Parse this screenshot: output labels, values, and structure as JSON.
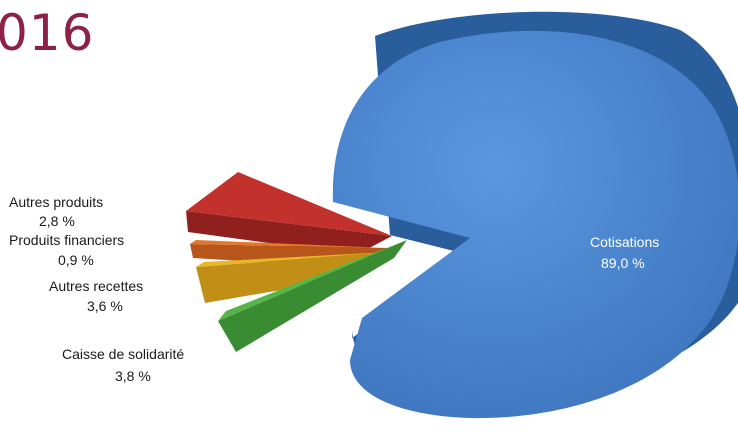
{
  "title": "016",
  "chart_data": {
    "type": "pie",
    "slices": [
      {
        "label": "Cotisations",
        "value": 89.0,
        "display": "89,0 %",
        "color": "#4a86d2"
      },
      {
        "label": "Autres produits",
        "value": 2.8,
        "display": "2,8 %",
        "color": "#c3312c"
      },
      {
        "label": "Produits financiers",
        "value": 0.9,
        "display": "0,9 %",
        "color": "#e4772c"
      },
      {
        "label": "Autres recettes",
        "value": 3.6,
        "display": "3,6 %",
        "color": "#e9b52a"
      },
      {
        "label": "Caisse de solidarité",
        "value": 3.8,
        "display": "3,8 %",
        "color": "#55b548"
      }
    ]
  }
}
